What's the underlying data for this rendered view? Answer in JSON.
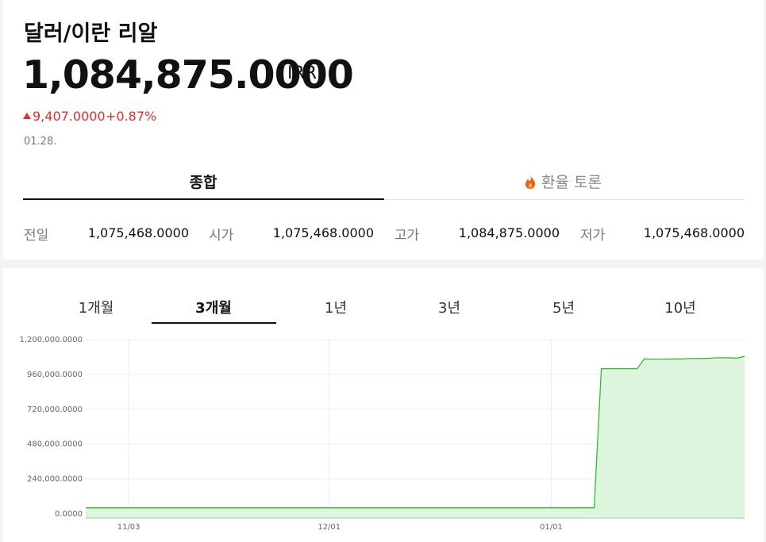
{
  "header": {
    "title": "달러/이란 리알",
    "price": "1,084,875.0000",
    "unit": "IRR",
    "change": "9,407.0000",
    "change_pct": "+0.87%",
    "date": "01.28."
  },
  "tabs": [
    "종합",
    "환율 토론"
  ],
  "stats": [
    {
      "label": "전일",
      "value": "1,075,468.0000"
    },
    {
      "label": "시가",
      "value": "1,075,468.0000"
    },
    {
      "label": "고가",
      "value": "1,084,875.0000"
    },
    {
      "label": "저가",
      "value": "1,075,468.0000"
    }
  ],
  "periods": [
    "1개월",
    "3개월",
    "1년",
    "3년",
    "5년",
    "10년"
  ],
  "chart_data": {
    "type": "line",
    "color": "#2cc12c",
    "fill": "#dcf5dc",
    "grid": true,
    "categories": [
      null,
      null,
      null,
      null,
      null,
      null,
      "11/03",
      null,
      null,
      null,
      null,
      null,
      null,
      null,
      null,
      null,
      null,
      null,
      null,
      null,
      null,
      null,
      null,
      null,
      null,
      null,
      null,
      null,
      null,
      null,
      null,
      null,
      null,
      null,
      "12/01",
      null,
      null,
      null,
      null,
      null,
      null,
      null,
      null,
      null,
      null,
      null,
      null,
      null,
      null,
      null,
      null,
      null,
      null,
      null,
      null,
      null,
      null,
      null,
      null,
      null,
      null,
      null,
      null,
      null,
      null,
      "01/01",
      null,
      null,
      null,
      null,
      null,
      null,
      null,
      null,
      null,
      null,
      null,
      null,
      null,
      null,
      null,
      null,
      null,
      null,
      null,
      null,
      null,
      null,
      null,
      null,
      null,
      null,
      null
    ],
    "values": [
      42000,
      42000,
      42000,
      42000,
      42000,
      42000,
      42000,
      42000,
      42000,
      42000,
      42000,
      42000,
      42000,
      42000,
      42000,
      42000,
      42000,
      42000,
      42000,
      42000,
      42000,
      42000,
      42000,
      42000,
      42000,
      42000,
      42000,
      42000,
      42000,
      42000,
      42000,
      42000,
      42000,
      42000,
      42000,
      42000,
      42000,
      42000,
      42000,
      42000,
      42000,
      42000,
      42000,
      42000,
      42000,
      42000,
      42000,
      42000,
      42000,
      42000,
      42000,
      42000,
      42000,
      42000,
      42000,
      42000,
      42000,
      42000,
      42000,
      42000,
      42000,
      42000,
      42000,
      42000,
      42000,
      42000,
      42000,
      42000,
      42000,
      42000,
      42000,
      42000,
      1000000,
      1000000,
      1000000,
      1000000,
      1000000,
      1000000,
      1068000,
      1066000,
      1066000,
      1066000,
      1067000,
      1067000,
      1069000,
      1070000,
      1070000,
      1071000,
      1075000,
      1075000,
      1074000,
      1073000,
      1084875
    ],
    "ylim": [
      -30000,
      1200000
    ],
    "yticks": [
      {
        "value": 0,
        "label": "0.0000"
      },
      {
        "value": 240000,
        "label": "240,000.0000"
      },
      {
        "value": 480000,
        "label": "480,000.0000"
      },
      {
        "value": 720000,
        "label": "720,000.0000"
      },
      {
        "value": 960000,
        "label": "960,000.0000"
      },
      {
        "value": 1200000,
        "label": "1,200,000.0000"
      }
    ]
  }
}
